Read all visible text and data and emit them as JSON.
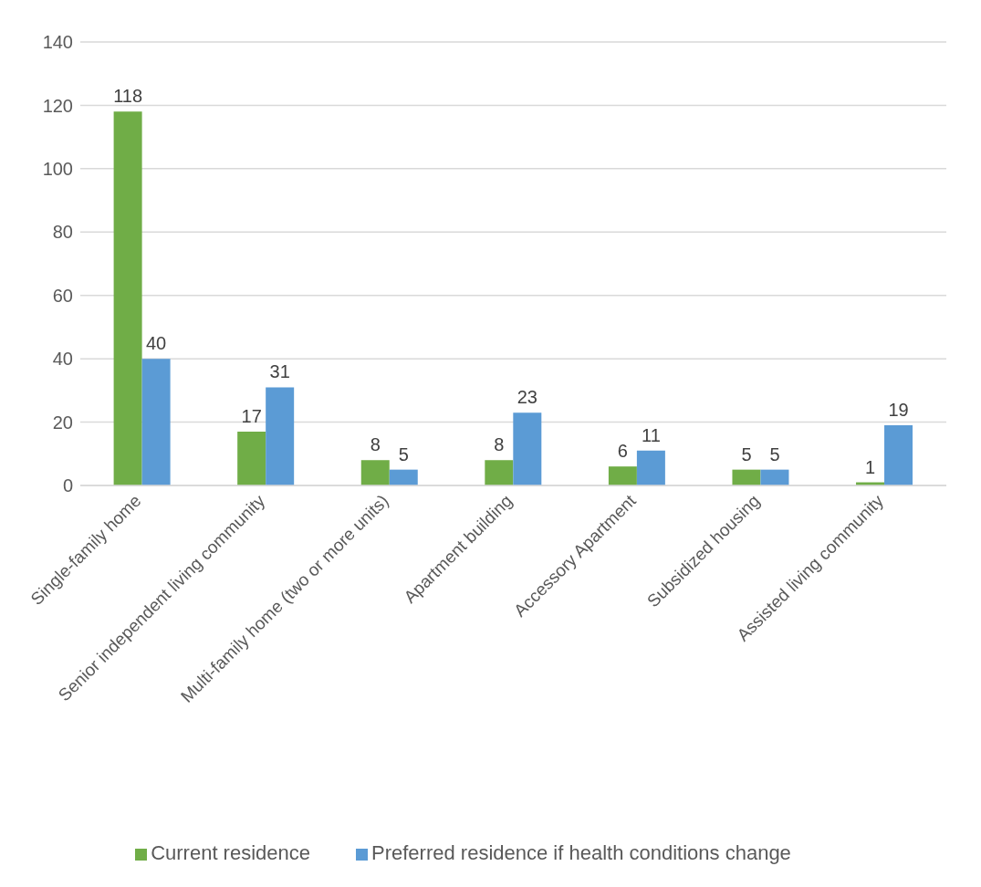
{
  "chart_data": {
    "type": "bar",
    "categories": [
      "Single-family home",
      "Senior independent living community",
      "Multi-family home (two or more units)",
      "Apartment building",
      "Accessory Apartment",
      "Subsidized housing",
      "Assisted living community"
    ],
    "series": [
      {
        "name": "Current residence",
        "color": "#70ad47",
        "values": [
          118,
          17,
          8,
          8,
          6,
          5,
          1
        ]
      },
      {
        "name": "Preferred residence if health conditions change",
        "color": "#5b9bd5",
        "values": [
          40,
          31,
          5,
          23,
          11,
          5,
          19
        ]
      }
    ],
    "ylim": [
      0,
      140
    ],
    "yticks": [
      0,
      20,
      40,
      60,
      80,
      100,
      120,
      140
    ],
    "grid": "y",
    "legend": "bottom",
    "data_labels": true
  }
}
